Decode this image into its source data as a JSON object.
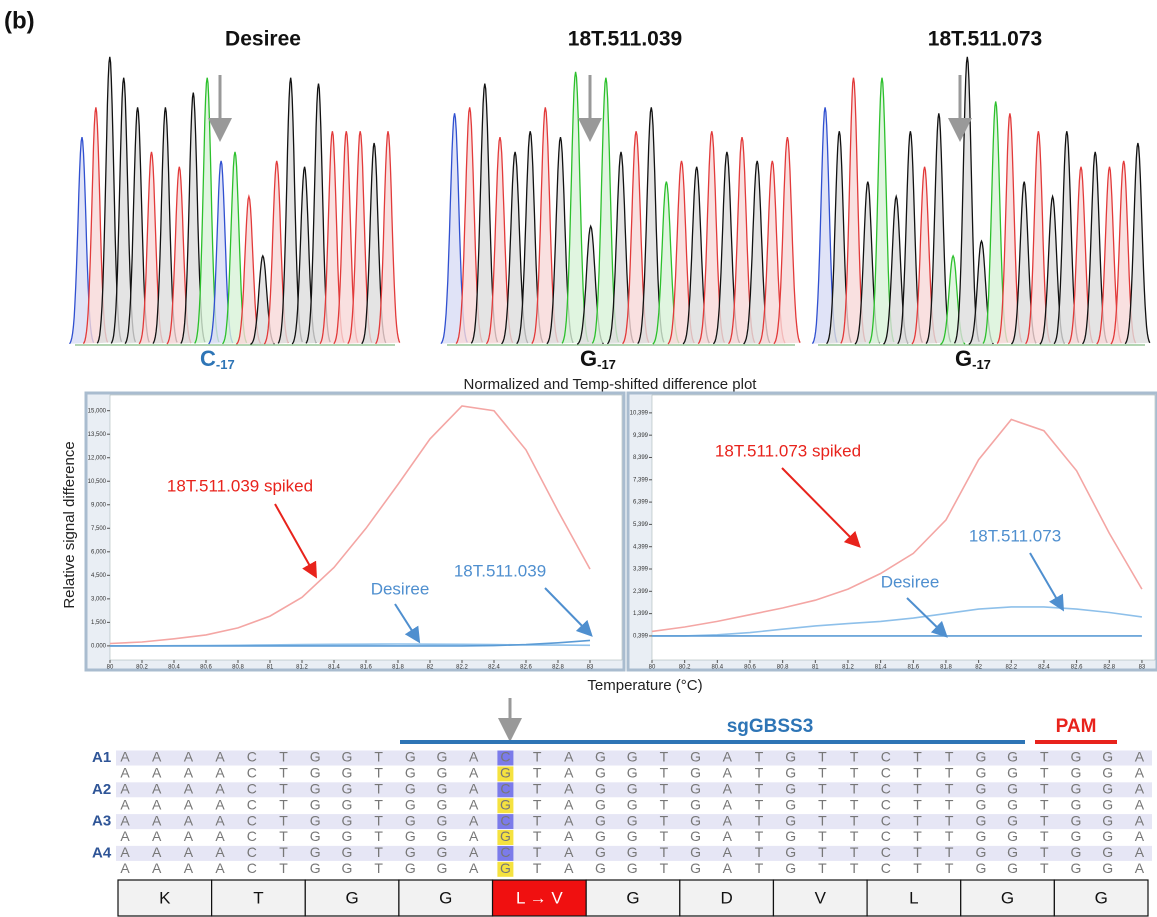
{
  "panel_label": "(b)",
  "chromatograms": [
    {
      "title": "Desiree",
      "base": "C",
      "sub": "-17"
    },
    {
      "title": "18T.511.039",
      "base": "G",
      "sub": "-17"
    },
    {
      "title": "18T.511.073",
      "base": "G",
      "sub": "-17"
    }
  ],
  "chart_data": [
    {
      "type": "line",
      "title": "Normalized and Temp-shifted difference plot",
      "y_label": "Relative signal difference",
      "x_label": "Temperature (°C)",
      "x": [
        80,
        80.2,
        80.4,
        80.6,
        80.8,
        81,
        81.2,
        81.4,
        81.6,
        81.8,
        82,
        82.2,
        82.4,
        82.6,
        82.8,
        83
      ],
      "xlim": [
        80,
        83.2
      ],
      "ylim": [
        -900,
        16000
      ],
      "xticks": [
        80,
        80.2,
        80.4,
        80.6,
        80.8,
        81,
        81.2,
        81.4,
        81.6,
        81.8,
        82,
        82.2,
        82.4,
        82.6,
        82.8,
        83
      ],
      "yticks": [
        {
          "value": 0,
          "label": "0.000"
        },
        {
          "value": 1500,
          "label": "1,500"
        },
        {
          "value": 3000,
          "label": "3,000"
        },
        {
          "value": 4500,
          "label": "4,500"
        },
        {
          "value": 6000,
          "label": "6,000"
        },
        {
          "value": 7500,
          "label": "7,500"
        },
        {
          "value": 9000,
          "label": "9,000"
        },
        {
          "value": 10500,
          "label": "10,500"
        },
        {
          "value": 12000,
          "label": "12,000"
        },
        {
          "value": 13500,
          "label": "13,500"
        },
        {
          "value": 15000,
          "label": "15,000"
        }
      ],
      "series": [
        {
          "name": "18T.511.039 spiked",
          "color": "#f4a6a4",
          "values": [
            150,
            250,
            450,
            700,
            1150,
            1900,
            3100,
            5000,
            7500,
            10300,
            13200,
            15300,
            15000,
            12500,
            8600,
            4900
          ]
        },
        {
          "name": "Desiree",
          "color": "#8ec0ea",
          "values": [
            0,
            0,
            10,
            20,
            40,
            60,
            80,
            100,
            110,
            120,
            110,
            100,
            80,
            60,
            50,
            40
          ]
        },
        {
          "name": "18T.511.039",
          "color": "#5b9bd5",
          "values": [
            0,
            0,
            0,
            0,
            0,
            0,
            0,
            0,
            0,
            0,
            0,
            0,
            20,
            80,
            200,
            350
          ]
        }
      ]
    },
    {
      "type": "line",
      "x": [
        80,
        80.2,
        80.4,
        80.6,
        80.8,
        81,
        81.2,
        81.4,
        81.6,
        81.8,
        82,
        82.2,
        82.4,
        82.6,
        82.8,
        83
      ],
      "xlim": [
        80,
        83.08
      ],
      "ylim": [
        -680,
        11200
      ],
      "xticks": [
        80,
        80.2,
        80.4,
        80.6,
        80.8,
        81,
        81.2,
        81.4,
        81.6,
        81.8,
        82,
        82.2,
        82.4,
        82.6,
        82.8,
        83
      ],
      "yticks": [
        {
          "value": 399,
          "label": "0,399"
        },
        {
          "value": 1399,
          "label": "1,399"
        },
        {
          "value": 2399,
          "label": "2,399"
        },
        {
          "value": 3399,
          "label": "3,399"
        },
        {
          "value": 4399,
          "label": "4,399"
        },
        {
          "value": 5399,
          "label": "5,399"
        },
        {
          "value": 6399,
          "label": "6,399"
        },
        {
          "value": 7399,
          "label": "7,399"
        },
        {
          "value": 8399,
          "label": "8,399"
        },
        {
          "value": 9399,
          "label": "9,399"
        },
        {
          "value": 10399,
          "label": "10,399"
        }
      ],
      "series": [
        {
          "name": "18T.511.073 spiked",
          "color": "#f4a6a4",
          "values": [
            600,
            800,
            1050,
            1350,
            1650,
            2000,
            2500,
            3200,
            4100,
            5600,
            8300,
            10100,
            9600,
            7800,
            5000,
            2500
          ]
        },
        {
          "name": "18T.511.073",
          "color": "#8ec0ea",
          "values": [
            399,
            399,
            450,
            550,
            700,
            850,
            950,
            1050,
            1200,
            1400,
            1600,
            1700,
            1700,
            1600,
            1450,
            1250
          ]
        },
        {
          "name": "Desiree",
          "color": "#5b9bd5",
          "values": [
            400,
            400,
            400,
            400,
            400,
            400,
            400,
            400,
            400,
            400,
            400,
            400,
            400,
            400,
            400,
            400
          ]
        }
      ]
    }
  ],
  "alignment": {
    "guide": "sgGBSS3",
    "pam": "PAM",
    "rows": [
      {
        "label": "A1",
        "bases": "AAAACTGGTGGACTAGGTGATGTTCTTGGTGGA"
      },
      {
        "bases": "AAAACTGGTGGAGTAGGTGATGTTCTTGGTGGA"
      },
      {
        "label": "A2",
        "bases": "AAAACTGGTGGACTAGGTGATGTTCTTGGTGGA"
      },
      {
        "bases": "AAAACTGGTGGAGTAGGTGATGTTCTTGGTGGA"
      },
      {
        "label": "A3",
        "bases": "AAAACTGGTGGACTAGGTGATGTTCTTGGTGGA"
      },
      {
        "bases": "AAAACTGGTGGAGTAGGTGATGTTCTTGGTGGA"
      },
      {
        "label": "A4",
        "bases": "AAAACTGGTGGACTAGGTGATGTTCTTGGTGGA"
      },
      {
        "bases": "AAAACTGGTGGAGTAGGTGATGTTCTTGGTGGA"
      }
    ],
    "protein": [
      "K",
      "T",
      "G",
      "G",
      "L → V",
      "G",
      "D",
      "V",
      "L",
      "G",
      "G"
    ]
  }
}
